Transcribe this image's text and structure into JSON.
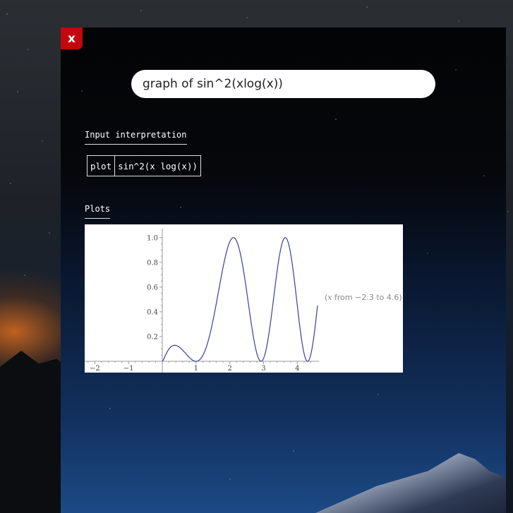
{
  "query": {
    "value": "graph of sin^2(xlog(x))",
    "placeholder": ""
  },
  "close_label": "x",
  "sections": {
    "input_interpretation": {
      "title": "Input interpretation",
      "cells": [
        "plot",
        "sin^2(x log(x))"
      ]
    },
    "plots": {
      "title": "Plots",
      "note_variable": "x",
      "note_text": "from −2.3 to 4.6"
    }
  },
  "colors": {
    "close_button": "#c4070e",
    "curve": "#3a3f9a"
  },
  "chart_data": {
    "type": "line",
    "function": "sin^2(x log(x))",
    "xlim": [
      -2.3,
      4.6
    ],
    "ylim": [
      0,
      1.05
    ],
    "x_ticks": [
      -2,
      -1,
      1,
      2,
      3,
      4
    ],
    "x_tick_labels": [
      "−2",
      "−1",
      "1",
      "2",
      "3",
      "4"
    ],
    "y_ticks": [
      0.2,
      0.4,
      0.6,
      0.8,
      1.0
    ],
    "y_tick_labels": [
      "0.2",
      "0.4",
      "0.6",
      "0.8",
      "1.0"
    ],
    "grid": false,
    "series": [
      {
        "domain": [
          0,
          4.6
        ]
      }
    ]
  }
}
